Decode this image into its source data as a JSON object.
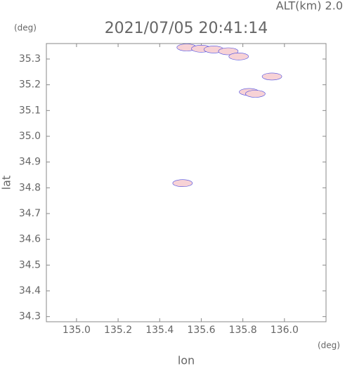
{
  "chart_data": {
    "type": "scatter",
    "title": "2021/07/05 20:41:14",
    "subtitle": "ALT(km) 2.0",
    "y_unit": "(deg)",
    "x_unit": "(deg)",
    "x_label": "lon",
    "y_label": "lat",
    "x": [
      135.53,
      135.6,
      135.66,
      135.73,
      135.78,
      135.83,
      135.86,
      135.94,
      135.51
    ],
    "y": [
      35.345,
      35.34,
      35.337,
      35.33,
      35.31,
      35.172,
      35.165,
      35.232,
      34.818
    ],
    "color": "#f7d2d6",
    "edge_color": "#4a4ae0",
    "xlim": [
      134.855,
      136.2
    ],
    "ylim": [
      34.28,
      35.36
    ],
    "xticks": [
      {
        "value": 135.0,
        "label": "135.0"
      },
      135.2,
      135.4,
      135.6,
      135.8,
      {
        "value": 136.0,
        "label": "136.0"
      }
    ],
    "yticks": [
      34.3,
      34.4,
      34.5,
      34.6,
      34.7,
      34.8,
      34.9,
      {
        "value": 35.0,
        "label": "35.0"
      },
      35.1,
      35.2,
      35.3
    ]
  }
}
